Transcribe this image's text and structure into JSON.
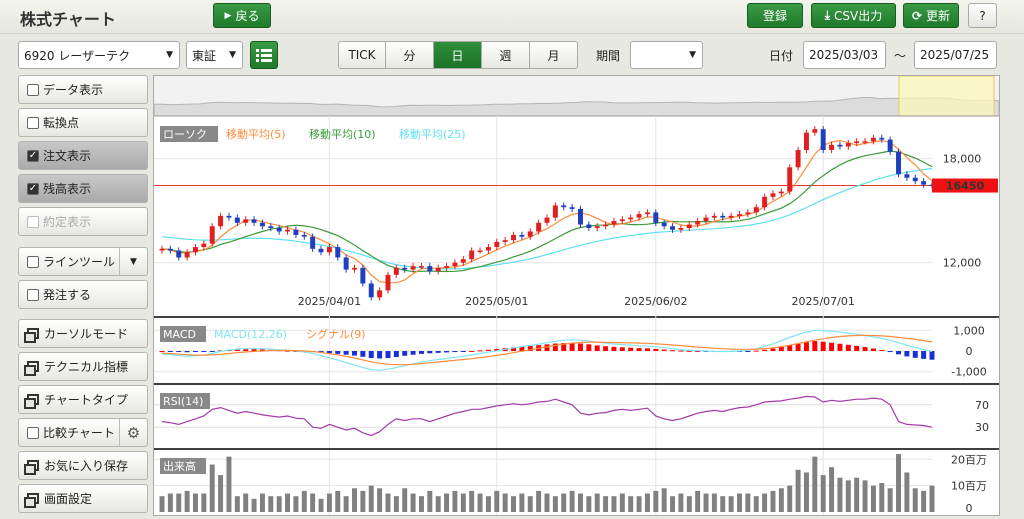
{
  "header": {
    "title": "株式チャート",
    "back_label": "戻る",
    "register_label": "登録",
    "csv_label": "CSV出力",
    "update_label": "更新",
    "help_label": "?"
  },
  "toolbar": {
    "symbol": "6920 レーザーテク",
    "market": "東証",
    "periods": [
      "TICK",
      "分",
      "日",
      "週",
      "月"
    ],
    "active_period": "日",
    "range_label": "期間",
    "range_value": "",
    "date_label": "日付",
    "date_from": "2025/03/03",
    "date_sep": "～",
    "date_to": "2025/07/25"
  },
  "sidebar": {
    "items": [
      {
        "label": "データ表示",
        "checked": false
      },
      {
        "label": "転換点",
        "checked": false
      },
      {
        "label": "注文表示",
        "checked": true
      },
      {
        "label": "残高表示",
        "checked": true
      },
      {
        "label": "約定表示",
        "checked": false,
        "disabled": true
      },
      {
        "label": "ラインツール",
        "checked": false
      },
      {
        "label": "発注する",
        "checked": false
      }
    ],
    "windows": [
      "カーソルモード",
      "テクニカル指標",
      "チャートタイプ"
    ],
    "compare_label": "比較チャート",
    "windows2": [
      "お気に入り保存",
      "画面設定"
    ]
  },
  "chart_data": [
    {
      "type": "candlestick",
      "legend": [
        "ローソク",
        "移動平均(5)",
        "移動平均(10)",
        "移動平均(25)"
      ],
      "colors": {
        "up": "#e02020",
        "down": "#1f3fbf",
        "ma5": "#ff8c3a",
        "ma10": "#3a9a3a",
        "ma25": "#5fe0f0"
      },
      "current_price": "16450",
      "ylim": [
        9500,
        20000
      ],
      "yticks": [
        12000,
        18000
      ],
      "ytick_labels": [
        "12,000",
        "18,000"
      ],
      "xtick_labels": [
        "2025/04/01",
        "2025/05/01",
        "2025/06/02",
        "2025/07/01"
      ],
      "xtick_index": [
        20,
        40,
        59,
        79
      ],
      "close": [
        12800,
        12700,
        12300,
        12600,
        12900,
        13100,
        14100,
        14700,
        14600,
        14300,
        14500,
        14300,
        14100,
        14000,
        13800,
        13900,
        13600,
        13500,
        12800,
        12600,
        12900,
        12300,
        11600,
        11700,
        10800,
        10000,
        10400,
        11300,
        11700,
        11600,
        11800,
        11800,
        11500,
        11700,
        11800,
        12000,
        12200,
        12700,
        12700,
        12900,
        13200,
        13300,
        13600,
        13500,
        13800,
        14300,
        14600,
        15300,
        15200,
        15100,
        14200,
        14000,
        14100,
        14200,
        14400,
        14500,
        14600,
        14800,
        14900,
        14300,
        14100,
        13900,
        14000,
        14200,
        14400,
        14600,
        14700,
        14600,
        14700,
        14800,
        14900,
        15200,
        15800,
        16000,
        16100,
        17500,
        18500,
        19500,
        19700,
        18500,
        18800,
        18700,
        18900,
        19000,
        19000,
        19200,
        19100,
        18400,
        17100,
        16900,
        16700,
        16500,
        16450
      ],
      "open": [
        12700,
        12800,
        12700,
        12300,
        12600,
        12900,
        13100,
        14100,
        14700,
        14600,
        14300,
        14500,
        14300,
        14100,
        14000,
        13800,
        13900,
        13600,
        13500,
        12800,
        12600,
        12900,
        12300,
        11600,
        11700,
        10800,
        10000,
        10400,
        11300,
        11700,
        11600,
        11800,
        11800,
        11500,
        11700,
        11800,
        12000,
        12200,
        12700,
        12700,
        12900,
        13200,
        13300,
        13600,
        13500,
        13800,
        14300,
        14600,
        15300,
        15200,
        15100,
        14200,
        14000,
        14100,
        14200,
        14400,
        14500,
        14600,
        14800,
        14900,
        14300,
        14100,
        13900,
        14000,
        14200,
        14400,
        14600,
        14700,
        14600,
        14700,
        14800,
        14900,
        15200,
        15800,
        16000,
        16100,
        17500,
        18500,
        19500,
        19700,
        18500,
        18800,
        18700,
        18900,
        19000,
        19000,
        19200,
        19100,
        18400,
        17100,
        16900,
        16700,
        16500
      ],
      "ma5": [
        12800,
        12720,
        12560,
        12560,
        12660,
        12720,
        13000,
        13480,
        13880,
        14160,
        14440,
        14480,
        14360,
        14240,
        14140,
        14020,
        13880,
        13760,
        13520,
        13320,
        13080,
        12820,
        12440,
        12240,
        11860,
        11280,
        10900,
        10840,
        10840,
        11000,
        11360,
        11640,
        11680,
        11680,
        11720,
        11760,
        11840,
        12080,
        12280,
        12500,
        12740,
        12960,
        13140,
        13300,
        13480,
        13740,
        13960,
        14260,
        14560,
        14780,
        14880,
        14760,
        14560,
        14320,
        14180,
        14240,
        14360,
        14480,
        14640,
        14620,
        14480,
        14340,
        14180,
        14100,
        14120,
        14220,
        14380,
        14500,
        14600,
        14680,
        14780,
        14940,
        15240,
        15540,
        15800,
        16100,
        16780,
        17520,
        18260,
        18760,
        18960,
        19040,
        18920,
        18780,
        18880,
        18960,
        19040,
        18940,
        18540,
        18060,
        17640,
        17120,
        16730
      ],
      "ma10": [
        12800,
        12760,
        12640,
        12600,
        12670,
        12740,
        12860,
        13050,
        13180,
        13330,
        13500,
        13660,
        13800,
        13930,
        14020,
        14110,
        14160,
        14120,
        14040,
        13910,
        13740,
        13560,
        13300,
        13020,
        12690,
        12400,
        12090,
        11840,
        11680,
        11560,
        11480,
        11500,
        11520,
        11500,
        11490,
        11500,
        11550,
        11670,
        11770,
        11900,
        12030,
        12160,
        12330,
        12480,
        12660,
        12890,
        13130,
        13390,
        13640,
        13880,
        14030,
        14110,
        14160,
        14170,
        14230,
        14250,
        14200,
        14190,
        14220,
        14280,
        14340,
        14380,
        14360,
        14360,
        14370,
        14370,
        14360,
        14350,
        14370,
        14420,
        14500,
        14640,
        14820,
        14980,
        15140,
        15400,
        15750,
        16180,
        16660,
        17020,
        17360,
        17640,
        17870,
        18040,
        18170,
        18260,
        18350,
        18440,
        18380,
        18210,
        18030,
        17800,
        17540
      ],
      "ma25": [
        13500,
        13450,
        13400,
        13350,
        13320,
        13300,
        13300,
        13320,
        13350,
        13380,
        13400,
        13410,
        13400,
        13380,
        13340,
        13300,
        13240,
        13170,
        13100,
        13020,
        12930,
        12830,
        12710,
        12580,
        12440,
        12280,
        12130,
        12000,
        11890,
        11800,
        11740,
        11700,
        11670,
        11650,
        11640,
        11640,
        11660,
        11700,
        11750,
        11810,
        11880,
        11950,
        12030,
        12120,
        12220,
        12340,
        12470,
        12600,
        12740,
        12880,
        13010,
        13120,
        13230,
        13330,
        13420,
        13500,
        13570,
        13630,
        13690,
        13740,
        13780,
        13810,
        13840,
        13870,
        13900,
        13930,
        13960,
        14000,
        14040,
        14090,
        14150,
        14230,
        14330,
        14450,
        14590,
        14760,
        14960,
        15180,
        15410,
        15630,
        15840,
        16040,
        16230,
        16410,
        16580,
        16740,
        16890,
        17020,
        17130,
        17220,
        17300,
        17370,
        17430
      ]
    },
    {
      "type": "bar",
      "legend": [
        "MACD",
        "MACD(12,26)",
        "シグナル(9)"
      ],
      "ylim": [
        -1400,
        1400
      ],
      "yticks": [
        1000,
        0,
        -1000
      ],
      "ytick_labels": [
        "1,000",
        "0",
        "-1,000"
      ],
      "colors": {
        "pos": "#ff0000",
        "neg": "#1a2fd6",
        "macd": "#7ee6f5",
        "signal": "#ff8c3a"
      },
      "histogram": [
        0,
        -20,
        -50,
        -60,
        -50,
        -40,
        -10,
        30,
        60,
        80,
        90,
        90,
        80,
        60,
        40,
        20,
        0,
        -20,
        -50,
        -80,
        -110,
        -140,
        -180,
        -220,
        -280,
        -340,
        -360,
        -340,
        -290,
        -230,
        -180,
        -140,
        -110,
        -90,
        -70,
        -50,
        -30,
        0,
        30,
        60,
        100,
        140,
        180,
        210,
        240,
        280,
        320,
        360,
        380,
        380,
        360,
        320,
        270,
        230,
        200,
        180,
        160,
        140,
        130,
        100,
        70,
        40,
        20,
        10,
        0,
        -10,
        -20,
        -30,
        -30,
        -20,
        -10,
        20,
        60,
        120,
        190,
        270,
        350,
        430,
        480,
        450,
        400,
        350,
        300,
        250,
        190,
        120,
        50,
        -50,
        -160,
        -260,
        -330,
        -380,
        -420
      ],
      "macd_line": [
        -150,
        -170,
        -220,
        -250,
        -230,
        -200,
        -120,
        -20,
        50,
        90,
        110,
        120,
        110,
        90,
        60,
        30,
        0,
        -50,
        -120,
        -220,
        -330,
        -440,
        -560,
        -680,
        -800,
        -900,
        -930,
        -880,
        -800,
        -710,
        -620,
        -540,
        -470,
        -410,
        -360,
        -310,
        -260,
        -190,
        -120,
        -60,
        10,
        80,
        150,
        210,
        270,
        330,
        400,
        470,
        520,
        540,
        520,
        480,
        430,
        380,
        340,
        310,
        280,
        250,
        230,
        200,
        160,
        110,
        70,
        40,
        20,
        0,
        -20,
        -30,
        -20,
        0,
        40,
        110,
        220,
        350,
        500,
        650,
        800,
        920,
        1000,
        980,
        950,
        910,
        860,
        810,
        750,
        680,
        610,
        520,
        400,
        280,
        170,
        70,
        -20
      ],
      "signal_line": [
        -100,
        -120,
        -150,
        -180,
        -200,
        -200,
        -190,
        -160,
        -120,
        -80,
        -50,
        -20,
        0,
        20,
        30,
        30,
        20,
        0,
        -30,
        -70,
        -130,
        -190,
        -260,
        -340,
        -430,
        -520,
        -590,
        -640,
        -660,
        -660,
        -640,
        -610,
        -570,
        -530,
        -490,
        -450,
        -410,
        -370,
        -320,
        -270,
        -210,
        -150,
        -80,
        -10,
        60,
        130,
        200,
        270,
        330,
        380,
        410,
        430,
        430,
        420,
        410,
        400,
        390,
        380,
        370,
        350,
        320,
        290,
        260,
        220,
        190,
        160,
        130,
        110,
        90,
        80,
        80,
        90,
        110,
        150,
        210,
        280,
        360,
        440,
        520,
        590,
        650,
        700,
        730,
        750,
        760,
        750,
        730,
        700,
        660,
        610,
        560,
        500,
        430
      ]
    },
    {
      "type": "line",
      "legend": [
        "RSI(14)"
      ],
      "ylim": [
        0,
        100
      ],
      "yticks": [
        70,
        30
      ],
      "ytick_labels": [
        "70",
        "30"
      ],
      "color": "#a23aa8",
      "values": [
        40,
        38,
        35,
        40,
        45,
        50,
        62,
        65,
        60,
        55,
        58,
        55,
        52,
        50,
        48,
        50,
        46,
        45,
        30,
        28,
        35,
        30,
        25,
        28,
        20,
        15,
        22,
        35,
        45,
        42,
        45,
        45,
        40,
        45,
        50,
        55,
        58,
        62,
        62,
        65,
        68,
        70,
        72,
        70,
        72,
        75,
        76,
        80,
        75,
        70,
        55,
        52,
        55,
        56,
        60,
        62,
        60,
        62,
        64,
        50,
        45,
        42,
        45,
        50,
        55,
        58,
        60,
        58,
        62,
        65,
        66,
        70,
        75,
        76,
        77,
        80,
        82,
        85,
        84,
        75,
        78,
        76,
        78,
        80,
        80,
        82,
        80,
        70,
        40,
        35,
        34,
        33,
        30
      ]
    },
    {
      "type": "bar",
      "legend": [
        "出来高"
      ],
      "ylim": [
        0,
        22
      ],
      "yticks": [
        20,
        10,
        0
      ],
      "ytick_labels": [
        "20百万",
        "10百万",
        "0"
      ],
      "color": "#808080",
      "values": [
        6,
        7,
        7,
        8,
        7,
        7,
        18,
        14,
        21,
        6,
        7,
        5,
        7,
        6,
        6,
        7,
        6,
        8,
        7,
        5,
        7,
        8,
        6,
        9,
        8,
        10,
        9,
        7,
        6,
        9,
        7,
        6,
        8,
        6,
        7,
        8,
        7,
        8,
        7,
        6,
        8,
        7,
        6,
        7,
        6,
        8,
        7,
        6,
        7,
        8,
        7,
        6,
        7,
        6,
        6,
        7,
        6,
        6,
        7,
        8,
        9,
        6,
        7,
        6,
        8,
        7,
        7,
        6,
        6,
        7,
        7,
        6,
        7,
        8,
        9,
        10,
        16,
        15,
        21,
        14,
        17,
        13,
        12,
        13,
        12,
        10,
        11,
        9,
        22,
        15,
        9,
        8,
        10
      ]
    }
  ]
}
